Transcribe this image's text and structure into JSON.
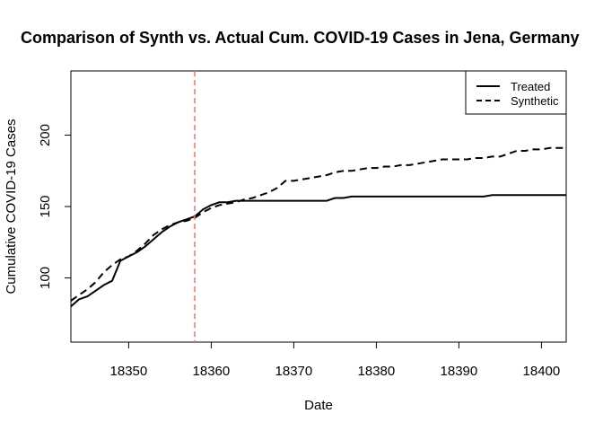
{
  "chart_data": {
    "type": "line",
    "title": "Comparison of Synth vs. Actual Cum. COVID-19 Cases in Jena, Germany",
    "xlabel": "Date",
    "ylabel": "Cumulative COVID-19 Cases",
    "xlim": [
      18343,
      18403
    ],
    "ylim": [
      55,
      245
    ],
    "x_ticks": [
      18350,
      18360,
      18370,
      18380,
      18390,
      18400
    ],
    "y_ticks": [
      100,
      150,
      200
    ],
    "legend": {
      "position": "top-right"
    },
    "vline": {
      "x": 18358,
      "color": "#ff6b6b",
      "style": "dashed"
    },
    "series": [
      {
        "name": "Treated",
        "style": "solid",
        "color": "#000000",
        "x": [
          18343,
          18344,
          18345,
          18346,
          18347,
          18348,
          18349,
          18350,
          18351,
          18352,
          18353,
          18354,
          18355,
          18356,
          18357,
          18358,
          18359,
          18360,
          18361,
          18362,
          18363,
          18364,
          18365,
          18366,
          18367,
          18368,
          18369,
          18370,
          18371,
          18372,
          18373,
          18374,
          18375,
          18376,
          18377,
          18378,
          18379,
          18380,
          18381,
          18382,
          18383,
          18384,
          18385,
          18386,
          18387,
          18388,
          18389,
          18390,
          18391,
          18392,
          18393,
          18394,
          18395,
          18396,
          18397,
          18398,
          18399,
          18400,
          18401,
          18402,
          18403
        ],
        "values": [
          80,
          85,
          87,
          91,
          95,
          98,
          112,
          115,
          118,
          122,
          127,
          132,
          136,
          139,
          141,
          143,
          148,
          151,
          153,
          153,
          154,
          154,
          154,
          154,
          154,
          154,
          154,
          154,
          154,
          154,
          154,
          154,
          156,
          156,
          157,
          157,
          157,
          157,
          157,
          157,
          157,
          157,
          157,
          157,
          157,
          157,
          157,
          157,
          157,
          157,
          157,
          158,
          158,
          158,
          158,
          158,
          158,
          158,
          158,
          158,
          158
        ]
      },
      {
        "name": "Synthetic",
        "style": "dashed",
        "color": "#000000",
        "x": [
          18343,
          18344,
          18345,
          18346,
          18347,
          18348,
          18349,
          18350,
          18351,
          18352,
          18353,
          18354,
          18355,
          18356,
          18357,
          18358,
          18359,
          18360,
          18361,
          18362,
          18363,
          18364,
          18365,
          18366,
          18367,
          18368,
          18369,
          18370,
          18371,
          18372,
          18373,
          18374,
          18375,
          18376,
          18377,
          18378,
          18379,
          18380,
          18381,
          18382,
          18383,
          18384,
          18385,
          18386,
          18387,
          18388,
          18389,
          18390,
          18391,
          18392,
          18393,
          18394,
          18395,
          18396,
          18397,
          18398,
          18399,
          18400,
          18401,
          18402,
          18403
        ],
        "values": [
          84,
          88,
          92,
          97,
          104,
          109,
          113,
          115,
          119,
          124,
          130,
          134,
          137,
          139,
          140,
          142,
          146,
          149,
          151,
          152,
          153,
          155,
          156,
          158,
          160,
          163,
          168,
          168,
          169,
          170,
          171,
          172,
          174,
          175,
          175,
          176,
          177,
          177,
          178,
          178,
          179,
          179,
          180,
          181,
          182,
          183,
          183,
          183,
          183,
          184,
          184,
          185,
          185,
          187,
          189,
          189,
          190,
          190,
          191,
          191,
          191
        ]
      }
    ]
  }
}
